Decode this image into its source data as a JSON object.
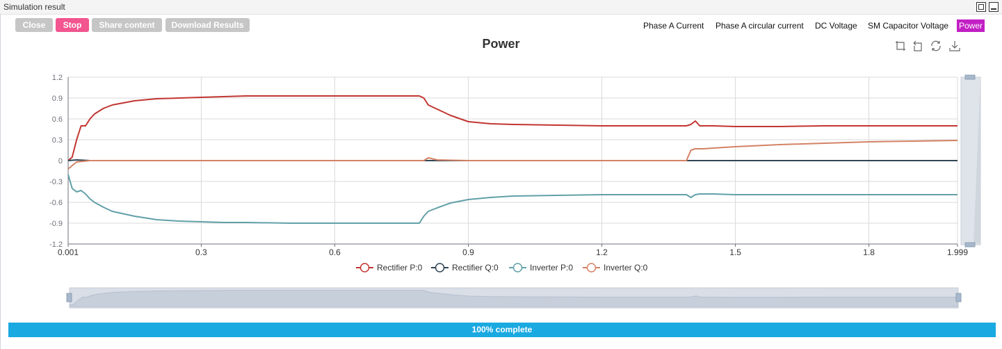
{
  "window": {
    "title": "Simulation result"
  },
  "toolbar": {
    "close_label": "Close",
    "stop_label": "Stop",
    "share_label": "Share content",
    "download_label": "Download Results"
  },
  "tabs": [
    {
      "label": "Phase A Current",
      "active": false
    },
    {
      "label": "Phase A circular current",
      "active": false
    },
    {
      "label": "DC Voltage",
      "active": false
    },
    {
      "label": "SM Capacitor Voltage",
      "active": false
    },
    {
      "label": "Power",
      "active": true
    }
  ],
  "colors": {
    "rectifier_p": "#c23531",
    "rectifier_q": "#2f4554",
    "inverter_p": "#61a0a8",
    "inverter_q": "#d48265",
    "active_tab": "#c21fc4",
    "stop_button": "#f2558f",
    "progress": "#1aa9e1"
  },
  "progress": {
    "label": "100% complete",
    "value": 100
  },
  "chart_data": {
    "type": "line",
    "title": "Power",
    "xlabel": "",
    "ylabel": "",
    "xlim": [
      0.001,
      1.999
    ],
    "ylim": [
      -1.2,
      1.2
    ],
    "x_ticks": [
      "0.001",
      "0.3",
      "0.6",
      "0.9",
      "1.2",
      "1.5",
      "1.8",
      "1.999"
    ],
    "y_ticks": [
      "1.2",
      "0.9",
      "0.6",
      "0.3",
      "0",
      "-0.3",
      "-0.6",
      "-0.9",
      "-1.2"
    ],
    "grid": true,
    "legend_position": "bottom",
    "toolbox_icons": [
      "zoom-icon",
      "zoom-reset-icon",
      "restore-icon",
      "save-image-icon"
    ],
    "series": [
      {
        "name": "Rectifier P:0",
        "color": "#c23531",
        "x": [
          0.001,
          0.01,
          0.02,
          0.03,
          0.04,
          0.05,
          0.06,
          0.08,
          0.1,
          0.15,
          0.2,
          0.25,
          0.3,
          0.35,
          0.4,
          0.5,
          0.6,
          0.7,
          0.79,
          0.8,
          0.81,
          0.83,
          0.86,
          0.9,
          0.95,
          1.0,
          1.1,
          1.2,
          1.3,
          1.39,
          1.4,
          1.41,
          1.42,
          1.45,
          1.5,
          1.6,
          1.7,
          1.8,
          1.9,
          1.999
        ],
        "y": [
          0.0,
          0.05,
          0.3,
          0.5,
          0.5,
          0.6,
          0.67,
          0.75,
          0.8,
          0.86,
          0.89,
          0.9,
          0.91,
          0.92,
          0.93,
          0.93,
          0.93,
          0.93,
          0.93,
          0.9,
          0.8,
          0.74,
          0.65,
          0.56,
          0.53,
          0.52,
          0.51,
          0.5,
          0.5,
          0.5,
          0.52,
          0.57,
          0.5,
          0.5,
          0.49,
          0.49,
          0.5,
          0.5,
          0.5,
          0.5
        ]
      },
      {
        "name": "Rectifier Q:0",
        "color": "#2f4554",
        "x": [
          0.001,
          0.02,
          0.05,
          0.1,
          0.5,
          1.0,
          1.5,
          1.999
        ],
        "y": [
          0.0,
          0.01,
          0.0,
          0.0,
          0.0,
          0.0,
          0.0,
          0.0
        ]
      },
      {
        "name": "Inverter P:0",
        "color": "#61a0a8",
        "x": [
          0.001,
          0.01,
          0.02,
          0.03,
          0.04,
          0.05,
          0.06,
          0.08,
          0.1,
          0.15,
          0.2,
          0.25,
          0.3,
          0.35,
          0.4,
          0.5,
          0.6,
          0.7,
          0.79,
          0.8,
          0.81,
          0.83,
          0.86,
          0.9,
          0.95,
          1.0,
          1.1,
          1.2,
          1.3,
          1.39,
          1.4,
          1.41,
          1.42,
          1.45,
          1.5,
          1.6,
          1.7,
          1.8,
          1.9,
          1.999
        ],
        "y": [
          -0.2,
          -0.4,
          -0.45,
          -0.43,
          -0.48,
          -0.55,
          -0.6,
          -0.67,
          -0.73,
          -0.8,
          -0.85,
          -0.87,
          -0.88,
          -0.89,
          -0.89,
          -0.9,
          -0.9,
          -0.9,
          -0.9,
          -0.8,
          -0.73,
          -0.68,
          -0.61,
          -0.56,
          -0.53,
          -0.51,
          -0.5,
          -0.49,
          -0.49,
          -0.49,
          -0.53,
          -0.49,
          -0.48,
          -0.48,
          -0.49,
          -0.49,
          -0.49,
          -0.49,
          -0.49,
          -0.49
        ]
      },
      {
        "name": "Inverter Q:0",
        "color": "#d48265",
        "x": [
          0.001,
          0.02,
          0.05,
          0.1,
          0.5,
          0.8,
          0.81,
          0.83,
          0.9,
          1.0,
          1.39,
          1.4,
          1.41,
          1.43,
          1.45,
          1.5,
          1.6,
          1.7,
          1.8,
          1.9,
          1.999
        ],
        "y": [
          -0.12,
          -0.02,
          0.0,
          0.0,
          0.0,
          0.0,
          0.04,
          0.01,
          0.0,
          0.0,
          0.0,
          0.15,
          0.17,
          0.17,
          0.18,
          0.2,
          0.23,
          0.25,
          0.27,
          0.28,
          0.29
        ]
      }
    ]
  }
}
